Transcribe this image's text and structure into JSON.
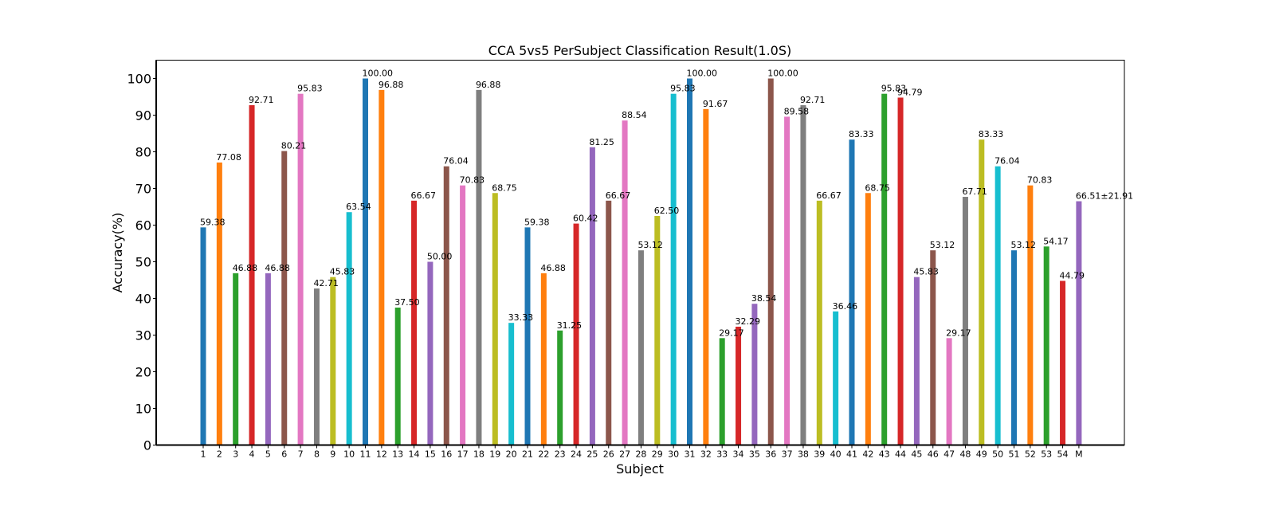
{
  "chart_data": {
    "type": "bar",
    "title": "CCA 5vs5 PerSubject Classification Result(1.0S)",
    "xlabel": "Subject",
    "ylabel": "Accuracy(%)",
    "ylim": [
      0,
      105
    ],
    "yticks": [
      0,
      10,
      20,
      30,
      40,
      50,
      60,
      70,
      80,
      90,
      100
    ],
    "grid": false,
    "categories": [
      "1",
      "2",
      "3",
      "4",
      "5",
      "6",
      "7",
      "8",
      "9",
      "10",
      "11",
      "12",
      "13",
      "14",
      "15",
      "16",
      "17",
      "18",
      "19",
      "20",
      "21",
      "22",
      "23",
      "24",
      "25",
      "26",
      "27",
      "28",
      "29",
      "30",
      "31",
      "32",
      "33",
      "34",
      "35",
      "36",
      "37",
      "38",
      "39",
      "40",
      "41",
      "42",
      "43",
      "44",
      "45",
      "46",
      "47",
      "48",
      "49",
      "50",
      "51",
      "52",
      "53",
      "54",
      "M"
    ],
    "values": [
      59.38,
      77.08,
      46.88,
      92.71,
      46.88,
      80.21,
      95.83,
      42.71,
      45.83,
      63.54,
      100.0,
      96.88,
      37.5,
      66.67,
      50.0,
      76.04,
      70.83,
      96.88,
      68.75,
      33.33,
      59.38,
      46.88,
      31.25,
      60.42,
      81.25,
      66.67,
      88.54,
      53.12,
      62.5,
      95.83,
      100.0,
      91.67,
      29.17,
      32.29,
      38.54,
      100.0,
      89.58,
      92.71,
      66.67,
      36.46,
      83.33,
      68.75,
      95.83,
      94.79,
      45.83,
      53.12,
      29.17,
      67.71,
      83.33,
      76.04,
      53.12,
      70.83,
      54.17,
      44.79,
      66.51
    ],
    "value_labels": [
      "59.38",
      "77.08",
      "46.88",
      "92.71",
      "46.88",
      "80.21",
      "95.83",
      "42.71",
      "45.83",
      "63.54",
      "100.00",
      "96.88",
      "37.50",
      "66.67",
      "50.00",
      "76.04",
      "70.83",
      "96.88",
      "68.75",
      "33.33",
      "59.38",
      "46.88",
      "31.25",
      "60.42",
      "81.25",
      "66.67",
      "88.54",
      "53.12",
      "62.50",
      "95.83",
      "100.00",
      "91.67",
      "29.17",
      "32.29",
      "38.54",
      "100.00",
      "89.58",
      "92.71",
      "66.67",
      "36.46",
      "83.33",
      "68.75",
      "95.83",
      "94.79",
      "45.83",
      "53.12",
      "29.17",
      "67.71",
      "83.33",
      "76.04",
      "53.12",
      "70.83",
      "54.17",
      "44.79",
      "66.51±21.91"
    ],
    "colors": [
      "#1f77b4",
      "#ff7f0e",
      "#2ca02c",
      "#d62728",
      "#9467bd",
      "#8c564b",
      "#e377c2",
      "#7f7f7f",
      "#bcbd22",
      "#17becf"
    ],
    "highlight_label_color": "#ff0000"
  }
}
